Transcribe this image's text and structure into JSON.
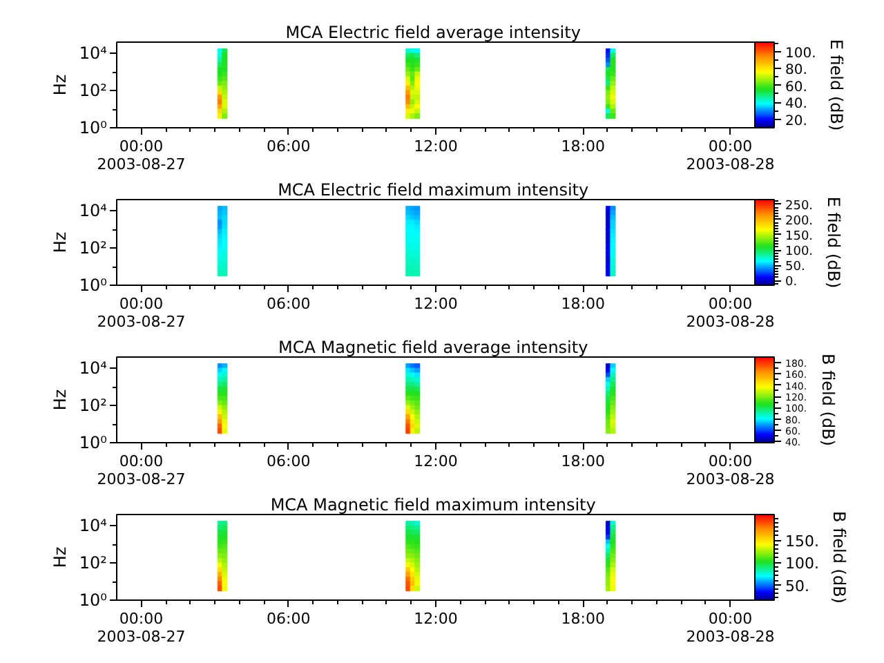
{
  "chart_data": [
    {
      "type": "scatter",
      "title": "MCA  Electric field average intensity",
      "ylabel": "Hz",
      "clabel": "E field (dB)",
      "log": true,
      "marker": "square",
      "xlim": [
        "2003-08-26T23:00",
        "2003-08-28T01:00"
      ],
      "xticks": [
        {
          "value": "2003-08-27T00:00",
          "label": "00:00\n2003-08-27"
        },
        {
          "value": "2003-08-27T01:00",
          "label": null
        },
        {
          "value": "2003-08-27T02:00",
          "label": null
        },
        {
          "value": "2003-08-27T03:00",
          "label": null
        },
        {
          "value": "2003-08-27T04:00",
          "label": null
        },
        {
          "value": "2003-08-27T05:00",
          "label": null
        },
        {
          "value": "2003-08-27T06:00",
          "label": "06:00"
        },
        {
          "value": "2003-08-27T07:00",
          "label": null
        },
        {
          "value": "2003-08-27T08:00",
          "label": null
        },
        {
          "value": "2003-08-27T09:00",
          "label": null
        },
        {
          "value": "2003-08-27T10:00",
          "label": null
        },
        {
          "value": "2003-08-27T11:00",
          "label": null
        },
        {
          "value": "2003-08-27T12:00",
          "label": "12:00"
        },
        {
          "value": "2003-08-27T13:00",
          "label": null
        },
        {
          "value": "2003-08-27T14:00",
          "label": null
        },
        {
          "value": "2003-08-27T15:00",
          "label": null
        },
        {
          "value": "2003-08-27T16:00",
          "label": null
        },
        {
          "value": "2003-08-27T17:00",
          "label": null
        },
        {
          "value": "2003-08-27T18:00",
          "label": "18:00"
        },
        {
          "value": "2003-08-27T19:00",
          "label": null
        },
        {
          "value": "2003-08-27T20:00",
          "label": null
        },
        {
          "value": "2003-08-27T21:00",
          "label": null
        },
        {
          "value": "2003-08-27T22:00",
          "label": null
        },
        {
          "value": "2003-08-27T23:00",
          "label": null
        },
        {
          "value": "2003-08-28T00:00",
          "label": "00:00\n2003-08-28"
        }
      ],
      "ylim": [
        1,
        40000
      ],
      "yticks": [
        {
          "value": 1,
          "label": "10⁰"
        },
        {
          "value": 10,
          "label": null
        },
        {
          "value": 100,
          "label": "10²"
        },
        {
          "value": 1000,
          "label": null
        },
        {
          "value": 10000,
          "label": "10⁴"
        }
      ],
      "clim": [
        10,
        111
      ],
      "cticks": [
        {
          "value": 20,
          "label": "20."
        },
        {
          "value": 30,
          "label": null
        },
        {
          "value": 40,
          "label": "40."
        },
        {
          "value": 50,
          "label": null
        },
        {
          "value": 60,
          "label": "60."
        },
        {
          "value": 70,
          "label": null
        },
        {
          "value": 80,
          "label": "80."
        },
        {
          "value": 90,
          "label": null
        },
        {
          "value": 100,
          "label": "100."
        },
        {
          "value": 110,
          "label": null
        }
      ],
      "x": [
        "2003-08-27T03:13",
        "2003-08-27T03:13",
        "2003-08-27T03:13",
        "2003-08-27T03:13",
        "2003-08-27T03:13",
        "2003-08-27T03:13",
        "2003-08-27T03:13",
        "2003-08-27T03:13",
        "2003-08-27T03:13",
        "2003-08-27T03:13",
        "2003-08-27T03:13",
        "2003-08-27T03:13",
        "2003-08-27T03:13",
        "2003-08-27T03:13",
        "2003-08-27T03:13",
        "2003-08-27T03:24",
        "2003-08-27T03:24",
        "2003-08-27T03:24",
        "2003-08-27T03:24",
        "2003-08-27T03:24",
        "2003-08-27T03:24",
        "2003-08-27T03:24",
        "2003-08-27T03:24",
        "2003-08-27T03:24",
        "2003-08-27T03:24",
        "2003-08-27T03:24",
        "2003-08-27T03:24",
        "2003-08-27T03:24",
        "2003-08-27T03:24",
        "2003-08-27T03:24",
        "2003-08-27T10:53",
        "2003-08-27T10:53",
        "2003-08-27T10:53",
        "2003-08-27T10:53",
        "2003-08-27T10:53",
        "2003-08-27T10:53",
        "2003-08-27T10:53",
        "2003-08-27T10:53",
        "2003-08-27T10:53",
        "2003-08-27T10:53",
        "2003-08-27T10:53",
        "2003-08-27T10:53",
        "2003-08-27T10:53",
        "2003-08-27T10:53",
        "2003-08-27T10:53",
        "2003-08-27T11:04",
        "2003-08-27T11:04",
        "2003-08-27T11:04",
        "2003-08-27T11:04",
        "2003-08-27T11:04",
        "2003-08-27T11:04",
        "2003-08-27T11:04",
        "2003-08-27T11:04",
        "2003-08-27T11:04",
        "2003-08-27T11:04",
        "2003-08-27T11:04",
        "2003-08-27T11:04",
        "2003-08-27T11:04",
        "2003-08-27T11:04",
        "2003-08-27T11:04",
        "2003-08-27T11:15",
        "2003-08-27T11:15",
        "2003-08-27T11:15",
        "2003-08-27T11:15",
        "2003-08-27T11:15",
        "2003-08-27T11:15",
        "2003-08-27T11:15",
        "2003-08-27T11:15",
        "2003-08-27T11:15",
        "2003-08-27T11:15",
        "2003-08-27T11:15",
        "2003-08-27T11:15",
        "2003-08-27T11:15",
        "2003-08-27T11:15",
        "2003-08-27T11:15",
        "2003-08-27T19:02",
        "2003-08-27T19:02",
        "2003-08-27T19:02",
        "2003-08-27T19:02",
        "2003-08-27T19:02",
        "2003-08-27T19:02",
        "2003-08-27T19:02",
        "2003-08-27T19:02",
        "2003-08-27T19:02",
        "2003-08-27T19:02",
        "2003-08-27T19:02",
        "2003-08-27T19:02",
        "2003-08-27T19:02",
        "2003-08-27T19:02",
        "2003-08-27T19:02",
        "2003-08-27T19:13",
        "2003-08-27T19:13",
        "2003-08-27T19:13",
        "2003-08-27T19:13",
        "2003-08-27T19:13",
        "2003-08-27T19:13",
        "2003-08-27T19:13",
        "2003-08-27T19:13",
        "2003-08-27T19:13",
        "2003-08-27T19:13",
        "2003-08-27T19:13",
        "2003-08-27T19:13",
        "2003-08-27T19:13",
        "2003-08-27T19:13",
        "2003-08-27T19:13"
      ],
      "values": [
        13000,
        7500,
        4200,
        2400,
        1300,
        750,
        420,
        240,
        130,
        75,
        42,
        24,
        13,
        7.5,
        4.2,
        13000,
        7500,
        4200,
        2400,
        1300,
        750,
        420,
        240,
        130,
        75,
        42,
        24,
        13,
        7.5,
        4.2,
        13000,
        7500,
        4200,
        2400,
        1300,
        750,
        420,
        240,
        130,
        75,
        42,
        24,
        13,
        7.5,
        4.2,
        13000,
        7500,
        4200,
        2400,
        1300,
        750,
        420,
        240,
        130,
        75,
        42,
        24,
        13,
        7.5,
        4.2,
        13000,
        7500,
        4200,
        2400,
        1300,
        750,
        420,
        240,
        130,
        75,
        42,
        24,
        13,
        7.5,
        4.2,
        13000,
        7500,
        4200,
        2400,
        1300,
        750,
        420,
        240,
        130,
        75,
        42,
        24,
        13,
        7.5,
        4.2,
        13000,
        7500,
        4200,
        2400,
        1300,
        750,
        420,
        240,
        130,
        75,
        42,
        24,
        13,
        7.5,
        4.2
      ],
      "cvalues": [
        38,
        40,
        45,
        50,
        55,
        55,
        58,
        62,
        70,
        82,
        92,
        96,
        90,
        82,
        78,
        52,
        55,
        55,
        56,
        55,
        58,
        60,
        64,
        66,
        68,
        70,
        72,
        72,
        68,
        64,
        42,
        50,
        55,
        58,
        62,
        66,
        72,
        78,
        86,
        92,
        96,
        94,
        86,
        78,
        72,
        40,
        52,
        55,
        56,
        58,
        62,
        60,
        64,
        68,
        72,
        70,
        66,
        70,
        74,
        68,
        38,
        48,
        54,
        58,
        62,
        70,
        74,
        76,
        74,
        72,
        70,
        72,
        76,
        70,
        64,
        20,
        22,
        25,
        30,
        52,
        55,
        52,
        48,
        58,
        64,
        66,
        64,
        58,
        40,
        50,
        40,
        50,
        55,
        56,
        56,
        58,
        62,
        66,
        70,
        72,
        74,
        72,
        68,
        62,
        58
      ]
    },
    {
      "type": "scatter",
      "title": "MCA  Electric field maximum intensity",
      "ylabel": "Hz",
      "clabel": "E field (dB)",
      "log": true,
      "marker": "square",
      "xlim": [
        "2003-08-26T23:00",
        "2003-08-28T01:00"
      ],
      "xticks": [
        {
          "value": "2003-08-27T00:00",
          "label": "00:00\n2003-08-27"
        },
        {
          "value": "2003-08-27T01:00",
          "label": null
        },
        {
          "value": "2003-08-27T02:00",
          "label": null
        },
        {
          "value": "2003-08-27T03:00",
          "label": null
        },
        {
          "value": "2003-08-27T04:00",
          "label": null
        },
        {
          "value": "2003-08-27T05:00",
          "label": null
        },
        {
          "value": "2003-08-27T06:00",
          "label": "06:00"
        },
        {
          "value": "2003-08-27T07:00",
          "label": null
        },
        {
          "value": "2003-08-27T08:00",
          "label": null
        },
        {
          "value": "2003-08-27T09:00",
          "label": null
        },
        {
          "value": "2003-08-27T10:00",
          "label": null
        },
        {
          "value": "2003-08-27T11:00",
          "label": null
        },
        {
          "value": "2003-08-27T12:00",
          "label": "12:00"
        },
        {
          "value": "2003-08-27T13:00",
          "label": null
        },
        {
          "value": "2003-08-27T14:00",
          "label": null
        },
        {
          "value": "2003-08-27T15:00",
          "label": null
        },
        {
          "value": "2003-08-27T16:00",
          "label": null
        },
        {
          "value": "2003-08-27T17:00",
          "label": null
        },
        {
          "value": "2003-08-27T18:00",
          "label": "18:00"
        },
        {
          "value": "2003-08-27T19:00",
          "label": null
        },
        {
          "value": "2003-08-27T20:00",
          "label": null
        },
        {
          "value": "2003-08-27T21:00",
          "label": null
        },
        {
          "value": "2003-08-27T22:00",
          "label": null
        },
        {
          "value": "2003-08-27T23:00",
          "label": null
        },
        {
          "value": "2003-08-28T00:00",
          "label": "00:00\n2003-08-28"
        }
      ],
      "ylim": [
        1,
        40000
      ],
      "yticks": [
        {
          "value": 1,
          "label": "10⁰"
        },
        {
          "value": 10,
          "label": null
        },
        {
          "value": 100,
          "label": "10²"
        },
        {
          "value": 1000,
          "label": null
        },
        {
          "value": 10000,
          "label": "10⁴"
        }
      ],
      "clim": [
        -15,
        265
      ],
      "cticks": [
        {
          "value": -10,
          "label": null
        },
        {
          "value": 0,
          "label": "0."
        },
        {
          "value": 10,
          "label": null
        },
        {
          "value": 20,
          "label": null
        },
        {
          "value": 30,
          "label": null
        },
        {
          "value": 40,
          "label": null
        },
        {
          "value": 50,
          "label": "50."
        },
        {
          "value": 60,
          "label": null
        },
        {
          "value": 70,
          "label": null
        },
        {
          "value": 80,
          "label": null
        },
        {
          "value": 90,
          "label": null
        },
        {
          "value": 100,
          "label": "100."
        },
        {
          "value": 110,
          "label": null
        },
        {
          "value": 120,
          "label": null
        },
        {
          "value": 130,
          "label": null
        },
        {
          "value": 140,
          "label": null
        },
        {
          "value": 150,
          "label": "150."
        },
        {
          "value": 160,
          "label": null
        },
        {
          "value": 170,
          "label": null
        },
        {
          "value": 180,
          "label": null
        },
        {
          "value": 190,
          "label": null
        },
        {
          "value": 200,
          "label": "200."
        },
        {
          "value": 210,
          "label": null
        },
        {
          "value": 220,
          "label": null
        },
        {
          "value": 230,
          "label": null
        },
        {
          "value": 240,
          "label": null
        },
        {
          "value": 250,
          "label": "250."
        },
        {
          "value": 260,
          "label": null
        }
      ],
      "x": [
        "2003-08-27T03:13",
        "2003-08-27T03:13",
        "2003-08-27T03:13",
        "2003-08-27T03:13",
        "2003-08-27T03:13",
        "2003-08-27T03:13",
        "2003-08-27T03:13",
        "2003-08-27T03:13",
        "2003-08-27T03:13",
        "2003-08-27T03:13",
        "2003-08-27T03:13",
        "2003-08-27T03:13",
        "2003-08-27T03:13",
        "2003-08-27T03:13",
        "2003-08-27T03:13",
        "2003-08-27T03:24",
        "2003-08-27T03:24",
        "2003-08-27T03:24",
        "2003-08-27T03:24",
        "2003-08-27T03:24",
        "2003-08-27T03:24",
        "2003-08-27T03:24",
        "2003-08-27T03:24",
        "2003-08-27T03:24",
        "2003-08-27T03:24",
        "2003-08-27T03:24",
        "2003-08-27T03:24",
        "2003-08-27T03:24",
        "2003-08-27T03:24",
        "2003-08-27T03:24",
        "2003-08-27T10:53",
        "2003-08-27T10:53",
        "2003-08-27T10:53",
        "2003-08-27T10:53",
        "2003-08-27T10:53",
        "2003-08-27T10:53",
        "2003-08-27T10:53",
        "2003-08-27T10:53",
        "2003-08-27T10:53",
        "2003-08-27T10:53",
        "2003-08-27T10:53",
        "2003-08-27T10:53",
        "2003-08-27T10:53",
        "2003-08-27T10:53",
        "2003-08-27T10:53",
        "2003-08-27T11:04",
        "2003-08-27T11:04",
        "2003-08-27T11:04",
        "2003-08-27T11:04",
        "2003-08-27T11:04",
        "2003-08-27T11:04",
        "2003-08-27T11:04",
        "2003-08-27T11:04",
        "2003-08-27T11:04",
        "2003-08-27T11:04",
        "2003-08-27T11:04",
        "2003-08-27T11:04",
        "2003-08-27T11:04",
        "2003-08-27T11:04",
        "2003-08-27T11:04",
        "2003-08-27T11:15",
        "2003-08-27T11:15",
        "2003-08-27T11:15",
        "2003-08-27T11:15",
        "2003-08-27T11:15",
        "2003-08-27T11:15",
        "2003-08-27T11:15",
        "2003-08-27T11:15",
        "2003-08-27T11:15",
        "2003-08-27T11:15",
        "2003-08-27T11:15",
        "2003-08-27T11:15",
        "2003-08-27T11:15",
        "2003-08-27T11:15",
        "2003-08-27T11:15",
        "2003-08-27T19:02",
        "2003-08-27T19:02",
        "2003-08-27T19:02",
        "2003-08-27T19:02",
        "2003-08-27T19:02",
        "2003-08-27T19:02",
        "2003-08-27T19:02",
        "2003-08-27T19:02",
        "2003-08-27T19:02",
        "2003-08-27T19:02",
        "2003-08-27T19:02",
        "2003-08-27T19:02",
        "2003-08-27T19:02",
        "2003-08-27T19:02",
        "2003-08-27T19:02",
        "2003-08-27T19:13",
        "2003-08-27T19:13",
        "2003-08-27T19:13",
        "2003-08-27T19:13",
        "2003-08-27T19:13",
        "2003-08-27T19:13",
        "2003-08-27T19:13",
        "2003-08-27T19:13",
        "2003-08-27T19:13",
        "2003-08-27T19:13",
        "2003-08-27T19:13",
        "2003-08-27T19:13",
        "2003-08-27T19:13",
        "2003-08-27T19:13",
        "2003-08-27T19:13"
      ],
      "values": [
        13000,
        7500,
        4200,
        2400,
        1300,
        750,
        420,
        240,
        130,
        75,
        42,
        24,
        13,
        7.5,
        4.2,
        13000,
        7500,
        4200,
        2400,
        1300,
        750,
        420,
        240,
        130,
        75,
        42,
        24,
        13,
        7.5,
        4.2,
        13000,
        7500,
        4200,
        2400,
        1300,
        750,
        420,
        240,
        130,
        75,
        42,
        24,
        13,
        7.5,
        4.2,
        13000,
        7500,
        4200,
        2400,
        1300,
        750,
        420,
        240,
        130,
        75,
        42,
        24,
        13,
        7.5,
        4.2,
        13000,
        7500,
        4200,
        2400,
        1300,
        750,
        420,
        240,
        130,
        75,
        42,
        24,
        13,
        7.5,
        4.2,
        13000,
        7500,
        4200,
        2400,
        1300,
        750,
        420,
        240,
        130,
        75,
        42,
        24,
        13,
        7.5,
        4.2,
        13000,
        7500,
        4200,
        2400,
        1300,
        750,
        420,
        240,
        130,
        75,
        42,
        24,
        13,
        7.5,
        4.2
      ],
      "cvalues": [
        45,
        48,
        50,
        40,
        42,
        50,
        55,
        58,
        60,
        62,
        66,
        70,
        72,
        75,
        78,
        50,
        52,
        55,
        56,
        58,
        60,
        62,
        63,
        64,
        66,
        70,
        72,
        74,
        76,
        78,
        48,
        50,
        55,
        60,
        62,
        64,
        66,
        68,
        70,
        72,
        74,
        76,
        78,
        80,
        80,
        45,
        48,
        52,
        60,
        62,
        64,
        65,
        66,
        68,
        70,
        72,
        75,
        77,
        78,
        80,
        42,
        45,
        50,
        56,
        60,
        62,
        64,
        66,
        68,
        70,
        72,
        74,
        76,
        78,
        80,
        5,
        2,
        0,
        0,
        2,
        5,
        0,
        2,
        5,
        8,
        5,
        2,
        5,
        8,
        10,
        40,
        45,
        50,
        54,
        56,
        58,
        60,
        62,
        64,
        66,
        68,
        70,
        72,
        74,
        76
      ]
    },
    {
      "type": "scatter",
      "title": "MCA  Magnetic field average intensity",
      "ylabel": "Hz",
      "clabel": "B field (dB)",
      "log": true,
      "marker": "square",
      "xlim": [
        "2003-08-26T23:00",
        "2003-08-28T01:00"
      ],
      "xticks": [
        {
          "value": "2003-08-27T00:00",
          "label": "00:00\n2003-08-27"
        },
        {
          "value": "2003-08-27T01:00",
          "label": null
        },
        {
          "value": "2003-08-27T02:00",
          "label": null
        },
        {
          "value": "2003-08-27T03:00",
          "label": null
        },
        {
          "value": "2003-08-27T04:00",
          "label": null
        },
        {
          "value": "2003-08-27T05:00",
          "label": null
        },
        {
          "value": "2003-08-27T06:00",
          "label": "06:00"
        },
        {
          "value": "2003-08-27T07:00",
          "label": null
        },
        {
          "value": "2003-08-27T08:00",
          "label": null
        },
        {
          "value": "2003-08-27T09:00",
          "label": null
        },
        {
          "value": "2003-08-27T10:00",
          "label": null
        },
        {
          "value": "2003-08-27T11:00",
          "label": null
        },
        {
          "value": "2003-08-27T12:00",
          "label": "12:00"
        },
        {
          "value": "2003-08-27T13:00",
          "label": null
        },
        {
          "value": "2003-08-27T14:00",
          "label": null
        },
        {
          "value": "2003-08-27T15:00",
          "label": null
        },
        {
          "value": "2003-08-27T16:00",
          "label": null
        },
        {
          "value": "2003-08-27T17:00",
          "label": null
        },
        {
          "value": "2003-08-27T18:00",
          "label": "18:00"
        },
        {
          "value": "2003-08-27T19:00",
          "label": null
        },
        {
          "value": "2003-08-27T20:00",
          "label": null
        },
        {
          "value": "2003-08-27T21:00",
          "label": null
        },
        {
          "value": "2003-08-27T22:00",
          "label": null
        },
        {
          "value": "2003-08-27T23:00",
          "label": null
        },
        {
          "value": "2003-08-28T00:00",
          "label": "00:00\n2003-08-28"
        }
      ],
      "ylim": [
        1,
        40000
      ],
      "yticks": [
        {
          "value": 1,
          "label": "10⁰"
        },
        {
          "value": 10,
          "label": null
        },
        {
          "value": 100,
          "label": "10²"
        },
        {
          "value": 1000,
          "label": null
        },
        {
          "value": 10000,
          "label": "10⁴"
        }
      ],
      "clim": [
        38,
        190
      ],
      "cticks": [
        {
          "value": 40,
          "label": "40."
        },
        {
          "value": 50,
          "label": null
        },
        {
          "value": 60,
          "label": "60."
        },
        {
          "value": 70,
          "label": null
        },
        {
          "value": 80,
          "label": "80."
        },
        {
          "value": 90,
          "label": null
        },
        {
          "value": 100,
          "label": "100."
        },
        {
          "value": 110,
          "label": null
        },
        {
          "value": 120,
          "label": "120."
        },
        {
          "value": 130,
          "label": null
        },
        {
          "value": 140,
          "label": "140."
        },
        {
          "value": 150,
          "label": null
        },
        {
          "value": 160,
          "label": "160."
        },
        {
          "value": 170,
          "label": null
        },
        {
          "value": 180,
          "label": "180."
        }
      ],
      "x": [
        "2003-08-27T03:13",
        "2003-08-27T03:13",
        "2003-08-27T03:13",
        "2003-08-27T03:13",
        "2003-08-27T03:13",
        "2003-08-27T03:13",
        "2003-08-27T03:13",
        "2003-08-27T03:13",
        "2003-08-27T03:13",
        "2003-08-27T03:13",
        "2003-08-27T03:13",
        "2003-08-27T03:13",
        "2003-08-27T03:13",
        "2003-08-27T03:13",
        "2003-08-27T03:13",
        "2003-08-27T03:24",
        "2003-08-27T03:24",
        "2003-08-27T03:24",
        "2003-08-27T03:24",
        "2003-08-27T03:24",
        "2003-08-27T03:24",
        "2003-08-27T03:24",
        "2003-08-27T03:24",
        "2003-08-27T03:24",
        "2003-08-27T03:24",
        "2003-08-27T03:24",
        "2003-08-27T03:24",
        "2003-08-27T03:24",
        "2003-08-27T03:24",
        "2003-08-27T03:24",
        "2003-08-27T10:53",
        "2003-08-27T10:53",
        "2003-08-27T10:53",
        "2003-08-27T10:53",
        "2003-08-27T10:53",
        "2003-08-27T10:53",
        "2003-08-27T10:53",
        "2003-08-27T10:53",
        "2003-08-27T10:53",
        "2003-08-27T10:53",
        "2003-08-27T10:53",
        "2003-08-27T10:53",
        "2003-08-27T10:53",
        "2003-08-27T10:53",
        "2003-08-27T10:53",
        "2003-08-27T11:04",
        "2003-08-27T11:04",
        "2003-08-27T11:04",
        "2003-08-27T11:04",
        "2003-08-27T11:04",
        "2003-08-27T11:04",
        "2003-08-27T11:04",
        "2003-08-27T11:04",
        "2003-08-27T11:04",
        "2003-08-27T11:04",
        "2003-08-27T11:04",
        "2003-08-27T11:04",
        "2003-08-27T11:04",
        "2003-08-27T11:04",
        "2003-08-27T11:04",
        "2003-08-27T11:15",
        "2003-08-27T11:15",
        "2003-08-27T11:15",
        "2003-08-27T11:15",
        "2003-08-27T11:15",
        "2003-08-27T11:15",
        "2003-08-27T11:15",
        "2003-08-27T11:15",
        "2003-08-27T11:15",
        "2003-08-27T11:15",
        "2003-08-27T11:15",
        "2003-08-27T11:15",
        "2003-08-27T11:15",
        "2003-08-27T11:15",
        "2003-08-27T11:15",
        "2003-08-27T19:02",
        "2003-08-27T19:02",
        "2003-08-27T19:02",
        "2003-08-27T19:02",
        "2003-08-27T19:02",
        "2003-08-27T19:02",
        "2003-08-27T19:02",
        "2003-08-27T19:02",
        "2003-08-27T19:02",
        "2003-08-27T19:02",
        "2003-08-27T19:02",
        "2003-08-27T19:02",
        "2003-08-27T19:02",
        "2003-08-27T19:02",
        "2003-08-27T19:02",
        "2003-08-27T19:13",
        "2003-08-27T19:13",
        "2003-08-27T19:13",
        "2003-08-27T19:13",
        "2003-08-27T19:13",
        "2003-08-27T19:13",
        "2003-08-27T19:13",
        "2003-08-27T19:13",
        "2003-08-27T19:13",
        "2003-08-27T19:13",
        "2003-08-27T19:13",
        "2003-08-27T19:13",
        "2003-08-27T19:13",
        "2003-08-27T19:13",
        "2003-08-27T19:13"
      ],
      "values": [
        13000,
        7500,
        4200,
        2400,
        1300,
        750,
        420,
        240,
        130,
        75,
        42,
        24,
        13,
        7.5,
        4.2,
        13000,
        7500,
        4200,
        2400,
        1300,
        750,
        420,
        240,
        130,
        75,
        42,
        24,
        13,
        7.5,
        4.2,
        13000,
        7500,
        4200,
        2400,
        1300,
        750,
        420,
        240,
        130,
        75,
        42,
        24,
        13,
        7.5,
        4.2,
        13000,
        7500,
        4200,
        2400,
        1300,
        750,
        420,
        240,
        130,
        75,
        42,
        24,
        13,
        7.5,
        4.2,
        13000,
        7500,
        4200,
        2400,
        1300,
        750,
        420,
        240,
        130,
        75,
        42,
        24,
        13,
        7.5,
        4.2,
        13000,
        7500,
        4200,
        2400,
        1300,
        750,
        420,
        240,
        130,
        75,
        42,
        24,
        13,
        7.5,
        4.2,
        13000,
        7500,
        4200,
        2400,
        1300,
        750,
        420,
        240,
        130,
        75,
        42,
        24,
        13,
        7.5,
        4.2
      ],
      "cvalues": [
        68,
        75,
        82,
        88,
        95,
        102,
        108,
        112,
        120,
        130,
        140,
        152,
        162,
        172,
        176,
        72,
        80,
        86,
        92,
        98,
        104,
        108,
        112,
        116,
        122,
        126,
        130,
        134,
        136,
        134,
        70,
        78,
        85,
        90,
        96,
        102,
        108,
        114,
        122,
        132,
        145,
        158,
        168,
        175,
        178,
        65,
        74,
        82,
        88,
        95,
        102,
        108,
        112,
        118,
        124,
        130,
        136,
        142,
        146,
        140,
        62,
        70,
        78,
        85,
        92,
        100,
        106,
        110,
        114,
        118,
        122,
        126,
        130,
        132,
        128,
        45,
        52,
        60,
        75,
        82,
        88,
        95,
        100,
        104,
        106,
        108,
        112,
        116,
        118,
        120,
        75,
        82,
        88,
        94,
        100,
        104,
        108,
        112,
        116,
        120,
        124,
        128,
        132,
        130,
        126
      ]
    },
    {
      "type": "scatter",
      "title": "MCA  Magnetic field maximum intensity",
      "ylabel": "Hz",
      "clabel": "B field (dB)",
      "log": true,
      "marker": "square",
      "xlim": [
        "2003-08-26T23:00",
        "2003-08-28T01:00"
      ],
      "xticks": [
        {
          "value": "2003-08-27T00:00",
          "label": "00:00\n2003-08-27"
        },
        {
          "value": "2003-08-27T01:00",
          "label": null
        },
        {
          "value": "2003-08-27T02:00",
          "label": null
        },
        {
          "value": "2003-08-27T03:00",
          "label": null
        },
        {
          "value": "2003-08-27T04:00",
          "label": null
        },
        {
          "value": "2003-08-27T05:00",
          "label": null
        },
        {
          "value": "2003-08-27T06:00",
          "label": "06:00"
        },
        {
          "value": "2003-08-27T07:00",
          "label": null
        },
        {
          "value": "2003-08-27T08:00",
          "label": null
        },
        {
          "value": "2003-08-27T09:00",
          "label": null
        },
        {
          "value": "2003-08-27T10:00",
          "label": null
        },
        {
          "value": "2003-08-27T11:00",
          "label": null
        },
        {
          "value": "2003-08-27T12:00",
          "label": "12:00"
        },
        {
          "value": "2003-08-27T13:00",
          "label": null
        },
        {
          "value": "2003-08-27T14:00",
          "label": null
        },
        {
          "value": "2003-08-27T15:00",
          "label": null
        },
        {
          "value": "2003-08-27T16:00",
          "label": null
        },
        {
          "value": "2003-08-27T17:00",
          "label": null
        },
        {
          "value": "2003-08-27T18:00",
          "label": "18:00"
        },
        {
          "value": "2003-08-27T19:00",
          "label": null
        },
        {
          "value": "2003-08-27T20:00",
          "label": null
        },
        {
          "value": "2003-08-27T21:00",
          "label": null
        },
        {
          "value": "2003-08-27T22:00",
          "label": null
        },
        {
          "value": "2003-08-27T23:00",
          "label": null
        },
        {
          "value": "2003-08-28T00:00",
          "label": "00:00\n2003-08-28"
        }
      ],
      "ylim": [
        1,
        40000
      ],
      "yticks": [
        {
          "value": 1,
          "label": "10⁰"
        },
        {
          "value": 10,
          "label": null
        },
        {
          "value": 100,
          "label": "10²"
        },
        {
          "value": 1000,
          "label": null
        },
        {
          "value": 10000,
          "label": "10⁴"
        }
      ],
      "clim": [
        15,
        208
      ],
      "cticks": [
        {
          "value": 20,
          "label": null
        },
        {
          "value": 30,
          "label": null
        },
        {
          "value": 40,
          "label": null
        },
        {
          "value": 50,
          "label": "50."
        },
        {
          "value": 60,
          "label": null
        },
        {
          "value": 70,
          "label": null
        },
        {
          "value": 80,
          "label": null
        },
        {
          "value": 90,
          "label": null
        },
        {
          "value": 100,
          "label": "100."
        },
        {
          "value": 110,
          "label": null
        },
        {
          "value": 120,
          "label": null
        },
        {
          "value": 130,
          "label": null
        },
        {
          "value": 140,
          "label": null
        },
        {
          "value": 150,
          "label": "150."
        },
        {
          "value": 160,
          "label": null
        },
        {
          "value": 170,
          "label": null
        },
        {
          "value": 180,
          "label": null
        },
        {
          "value": 190,
          "label": null
        },
        {
          "value": 200,
          "label": null
        }
      ],
      "x": [
        "2003-08-27T03:13",
        "2003-08-27T03:13",
        "2003-08-27T03:13",
        "2003-08-27T03:13",
        "2003-08-27T03:13",
        "2003-08-27T03:13",
        "2003-08-27T03:13",
        "2003-08-27T03:13",
        "2003-08-27T03:13",
        "2003-08-27T03:13",
        "2003-08-27T03:13",
        "2003-08-27T03:13",
        "2003-08-27T03:13",
        "2003-08-27T03:13",
        "2003-08-27T03:13",
        "2003-08-27T03:24",
        "2003-08-27T03:24",
        "2003-08-27T03:24",
        "2003-08-27T03:24",
        "2003-08-27T03:24",
        "2003-08-27T03:24",
        "2003-08-27T03:24",
        "2003-08-27T03:24",
        "2003-08-27T03:24",
        "2003-08-27T03:24",
        "2003-08-27T03:24",
        "2003-08-27T03:24",
        "2003-08-27T03:24",
        "2003-08-27T03:24",
        "2003-08-27T03:24",
        "2003-08-27T10:53",
        "2003-08-27T10:53",
        "2003-08-27T10:53",
        "2003-08-27T10:53",
        "2003-08-27T10:53",
        "2003-08-27T10:53",
        "2003-08-27T10:53",
        "2003-08-27T10:53",
        "2003-08-27T10:53",
        "2003-08-27T10:53",
        "2003-08-27T10:53",
        "2003-08-27T10:53",
        "2003-08-27T10:53",
        "2003-08-27T10:53",
        "2003-08-27T10:53",
        "2003-08-27T11:04",
        "2003-08-27T11:04",
        "2003-08-27T11:04",
        "2003-08-27T11:04",
        "2003-08-27T11:04",
        "2003-08-27T11:04",
        "2003-08-27T11:04",
        "2003-08-27T11:04",
        "2003-08-27T11:04",
        "2003-08-27T11:04",
        "2003-08-27T11:04",
        "2003-08-27T11:04",
        "2003-08-27T11:04",
        "2003-08-27T11:04",
        "2003-08-27T11:04",
        "2003-08-27T11:15",
        "2003-08-27T11:15",
        "2003-08-27T11:15",
        "2003-08-27T11:15",
        "2003-08-27T11:15",
        "2003-08-27T11:15",
        "2003-08-27T11:15",
        "2003-08-27T11:15",
        "2003-08-27T11:15",
        "2003-08-27T11:15",
        "2003-08-27T11:15",
        "2003-08-27T11:15",
        "2003-08-27T11:15",
        "2003-08-27T11:15",
        "2003-08-27T11:15",
        "2003-08-27T19:02",
        "2003-08-27T19:02",
        "2003-08-27T19:02",
        "2003-08-27T19:02",
        "2003-08-27T19:02",
        "2003-08-27T19:02",
        "2003-08-27T19:02",
        "2003-08-27T19:02",
        "2003-08-27T19:02",
        "2003-08-27T19:02",
        "2003-08-27T19:02",
        "2003-08-27T19:02",
        "2003-08-27T19:02",
        "2003-08-27T19:02",
        "2003-08-27T19:02",
        "2003-08-27T19:13",
        "2003-08-27T19:13",
        "2003-08-27T19:13",
        "2003-08-27T19:13",
        "2003-08-27T19:13",
        "2003-08-27T19:13",
        "2003-08-27T19:13",
        "2003-08-27T19:13",
        "2003-08-27T19:13",
        "2003-08-27T19:13",
        "2003-08-27T19:13",
        "2003-08-27T19:13",
        "2003-08-27T19:13",
        "2003-08-27T19:13",
        "2003-08-27T19:13"
      ],
      "values": [
        13000,
        7500,
        4200,
        2400,
        1300,
        750,
        420,
        240,
        130,
        75,
        42,
        24,
        13,
        7.5,
        4.2,
        13000,
        7500,
        4200,
        2400,
        1300,
        750,
        420,
        240,
        130,
        75,
        42,
        24,
        13,
        7.5,
        4.2,
        13000,
        7500,
        4200,
        2400,
        1300,
        750,
        420,
        240,
        130,
        75,
        42,
        24,
        13,
        7.5,
        4.2,
        13000,
        7500,
        4200,
        2400,
        1300,
        750,
        420,
        240,
        130,
        75,
        42,
        24,
        13,
        7.5,
        4.2,
        13000,
        7500,
        4200,
        2400,
        1300,
        750,
        420,
        240,
        130,
        75,
        42,
        24,
        13,
        7.5,
        4.2,
        13000,
        7500,
        4200,
        2400,
        1300,
        750,
        420,
        240,
        130,
        75,
        42,
        24,
        13,
        7.5,
        4.2,
        13000,
        7500,
        4200,
        2400,
        1300,
        750,
        420,
        240,
        130,
        75,
        42,
        24,
        13,
        7.5,
        4.2
      ],
      "cvalues": [
        85,
        90,
        96,
        100,
        104,
        108,
        114,
        120,
        128,
        138,
        150,
        164,
        176,
        186,
        190,
        88,
        94,
        98,
        102,
        106,
        110,
        114,
        118,
        122,
        126,
        130,
        134,
        138,
        140,
        138,
        84,
        90,
        96,
        100,
        104,
        110,
        116,
        122,
        130,
        142,
        156,
        170,
        182,
        188,
        190,
        80,
        88,
        94,
        100,
        104,
        108,
        114,
        120,
        126,
        132,
        140,
        148,
        156,
        160,
        150,
        76,
        84,
        92,
        98,
        102,
        106,
        110,
        116,
        120,
        124,
        128,
        132,
        136,
        138,
        132,
        25,
        28,
        32,
        40,
        60,
        70,
        80,
        90,
        98,
        104,
        110,
        116,
        120,
        122,
        124,
        78,
        86,
        92,
        98,
        102,
        106,
        110,
        116,
        120,
        126,
        132,
        136,
        140,
        142,
        138
      ]
    }
  ]
}
